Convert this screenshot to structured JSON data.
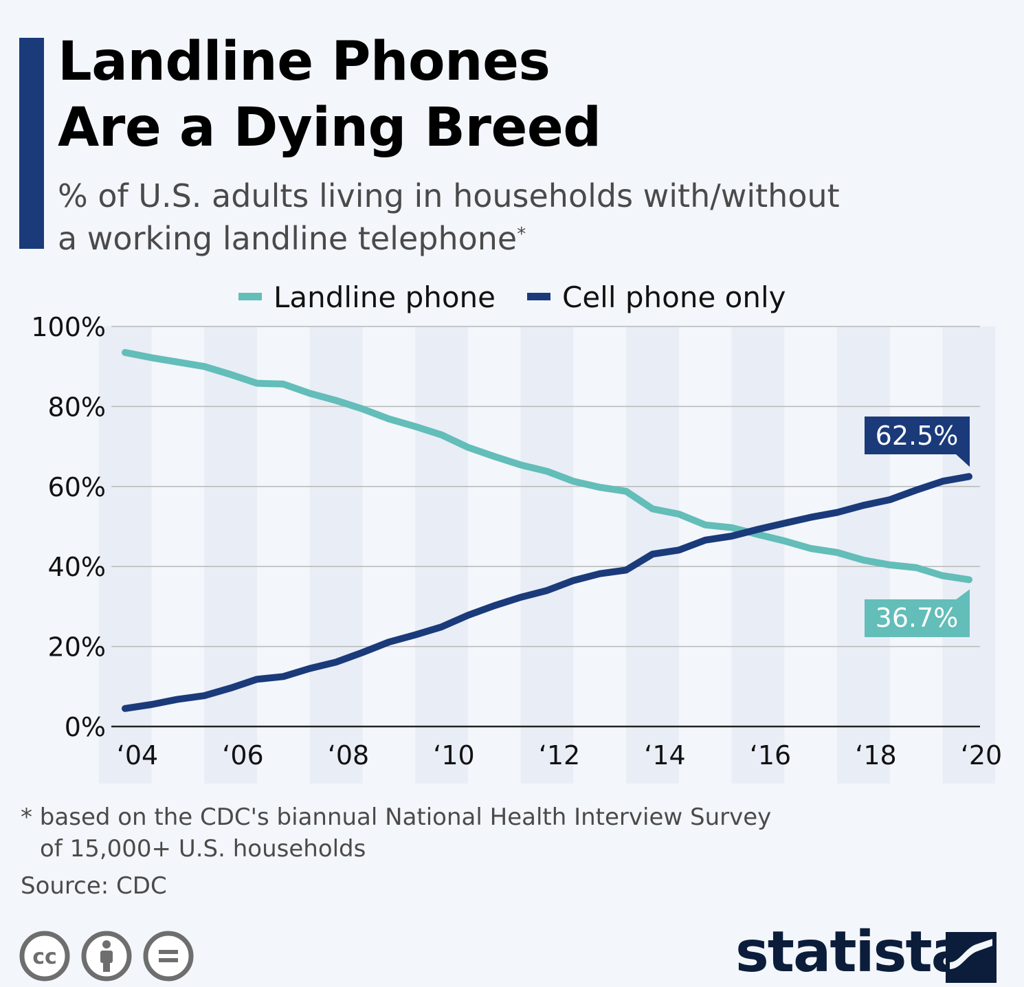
{
  "header": {
    "title_line1": "Landline Phones",
    "title_line2": "Are a Dying Breed",
    "subtitle_line1": "% of U.S. adults living in households with/without",
    "subtitle_line2": "a working landline telephone",
    "subtitle_asterisk": "*"
  },
  "footer": {
    "footnote_line1": "* based on the CDC's biannual National Health Interview Survey",
    "footnote_line2": "of 15,000+ U.S. households",
    "source": "Source: CDC",
    "logo_text": "statista"
  },
  "icons": [
    "cc-license-icon",
    "attribution-icon",
    "no-derivatives-icon",
    "statista-logo-icon"
  ],
  "colors": {
    "landline": "#63bdb8",
    "cell": "#1a3a7a",
    "accent": "#1a3a7a",
    "band": "#e9edf6",
    "grid": "#b8b8b8",
    "background": "#f3f6fa"
  },
  "chart_data": {
    "type": "line",
    "title": "Landline Phones Are a Dying Breed",
    "xlabel": "",
    "ylabel": "",
    "x": [
      2004.0,
      2004.5,
      2005.0,
      2005.5,
      2006.0,
      2006.5,
      2007.0,
      2007.5,
      2008.0,
      2008.5,
      2009.0,
      2009.5,
      2010.0,
      2010.5,
      2011.0,
      2011.5,
      2012.0,
      2012.5,
      2013.0,
      2013.5,
      2014.0,
      2014.5,
      2015.0,
      2015.5,
      2016.0,
      2016.5,
      2017.0,
      2017.5,
      2018.0,
      2018.5,
      2019.0,
      2019.5,
      2020.0
    ],
    "x_ticks": [
      2004,
      2006,
      2008,
      2010,
      2012,
      2014,
      2016,
      2018,
      2020
    ],
    "x_tick_labels": [
      "‘04",
      "‘06",
      "‘08",
      "‘10",
      "‘12",
      "‘14",
      "‘16",
      "‘18",
      "‘20"
    ],
    "ylim": [
      0,
      100
    ],
    "y_ticks": [
      0,
      20,
      40,
      60,
      80,
      100
    ],
    "y_tick_labels": [
      "0%",
      "20%",
      "40%",
      "60%",
      "80%",
      "100%"
    ],
    "grid": true,
    "legend": "top-center",
    "series": [
      {
        "name": "Landline phone",
        "color": "#63bdb8",
        "values": [
          93.5,
          92.2,
          91.1,
          90.0,
          88.0,
          85.8,
          85.6,
          83.3,
          81.5,
          79.4,
          76.9,
          75.0,
          72.9,
          69.8,
          67.5,
          65.4,
          63.8,
          61.3,
          59.8,
          58.8,
          54.4,
          53.1,
          50.4,
          49.7,
          48.0,
          46.4,
          44.5,
          43.5,
          41.6,
          40.4,
          39.7,
          37.7,
          36.7
        ],
        "end_label": "36.7%"
      },
      {
        "name": "Cell phone only",
        "color": "#1a3a7a",
        "values": [
          4.5,
          5.5,
          6.8,
          7.7,
          9.6,
          11.8,
          12.5,
          14.5,
          16.1,
          18.5,
          21.1,
          22.9,
          24.9,
          27.8,
          30.2,
          32.3,
          34.0,
          36.5,
          38.2,
          39.1,
          43.1,
          44.1,
          46.6,
          47.6,
          49.3,
          50.8,
          52.3,
          53.5,
          55.3,
          56.7,
          59.1,
          61.3,
          62.5
        ],
        "end_label": "62.5%"
      }
    ]
  }
}
